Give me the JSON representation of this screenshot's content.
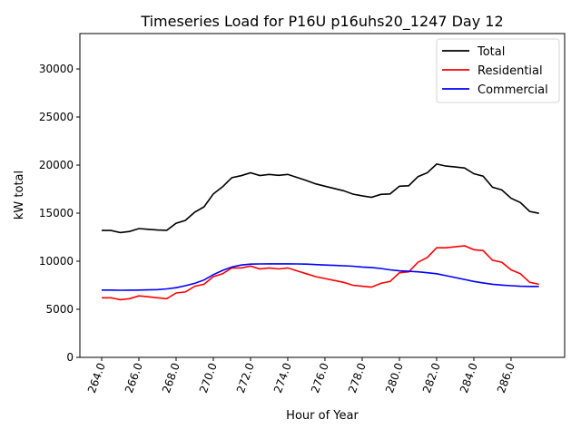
{
  "chart_data": {
    "type": "line",
    "title": "Timeseries Load for P16U p16uhs20_1247  Day 12",
    "xlabel": "Hour of Year",
    "ylabel": "kW total",
    "xlim": [
      262.83,
      288.88
    ],
    "ylim": [
      0,
      33680
    ],
    "xticks": [
      "264.0",
      "266.0",
      "268.0",
      "270.0",
      "272.0",
      "274.0",
      "276.0",
      "278.0",
      "280.0",
      "282.0",
      "284.0",
      "286.0"
    ],
    "yticks": [
      "0",
      "5000",
      "10000",
      "15000",
      "20000",
      "25000",
      "30000"
    ],
    "grid": false,
    "legend": {
      "placement": "top-right",
      "entries": [
        "Total",
        "Residential",
        "Commercial"
      ]
    },
    "x": [
      264,
      264.5,
      265,
      265.5,
      266,
      266.5,
      267,
      267.5,
      268,
      268.5,
      269,
      269.5,
      270,
      270.5,
      271,
      271.5,
      272,
      272.5,
      273,
      273.5,
      274,
      274.5,
      275,
      275.5,
      276,
      276.5,
      277,
      277.5,
      278,
      278.5,
      279,
      279.5,
      280,
      280.5,
      281,
      281.5,
      282,
      282.5,
      283,
      283.5,
      284,
      284.5,
      285,
      285.5,
      286,
      286.5,
      287,
      287.5
    ],
    "series": [
      {
        "name": "Total",
        "color": "#000000",
        "values": [
          13200,
          13200,
          12980,
          13090,
          13400,
          13320,
          13250,
          13220,
          13950,
          14250,
          15100,
          15650,
          17000,
          17750,
          18700,
          18900,
          19200,
          18920,
          19030,
          18930,
          19030,
          18720,
          18400,
          18050,
          17800,
          17570,
          17330,
          16980,
          16800,
          16650,
          16950,
          17000,
          17800,
          17850,
          18800,
          19200,
          20100,
          19900,
          19800,
          19700,
          19100,
          18850,
          17700,
          17420,
          16550,
          16100,
          15180,
          14980
        ]
      },
      {
        "name": "Residential",
        "color": "#ff0000",
        "values": [
          6200,
          6200,
          6000,
          6100,
          6400,
          6300,
          6200,
          6100,
          6700,
          6800,
          7400,
          7600,
          8400,
          8700,
          9300,
          9300,
          9500,
          9200,
          9300,
          9200,
          9300,
          9000,
          8700,
          8400,
          8200,
          8000,
          7800,
          7500,
          7400,
          7300,
          7700,
          7900,
          8800,
          8900,
          9900,
          10400,
          11400,
          11400,
          11500,
          11600,
          11200,
          11100,
          10100,
          9900,
          9100,
          8700,
          7800,
          7600
        ]
      },
      {
        "name": "Commercial",
        "color": "#0000ff",
        "values": [
          7000,
          7000,
          6980,
          6990,
          7000,
          7020,
          7050,
          7120,
          7250,
          7450,
          7700,
          8050,
          8600,
          9050,
          9400,
          9600,
          9700,
          9720,
          9730,
          9730,
          9730,
          9720,
          9700,
          9650,
          9600,
          9570,
          9530,
          9480,
          9400,
          9350,
          9250,
          9100,
          9000,
          8950,
          8900,
          8800,
          8700,
          8500,
          8300,
          8100,
          7900,
          7750,
          7600,
          7520,
          7450,
          7400,
          7380,
          7380
        ]
      }
    ]
  }
}
